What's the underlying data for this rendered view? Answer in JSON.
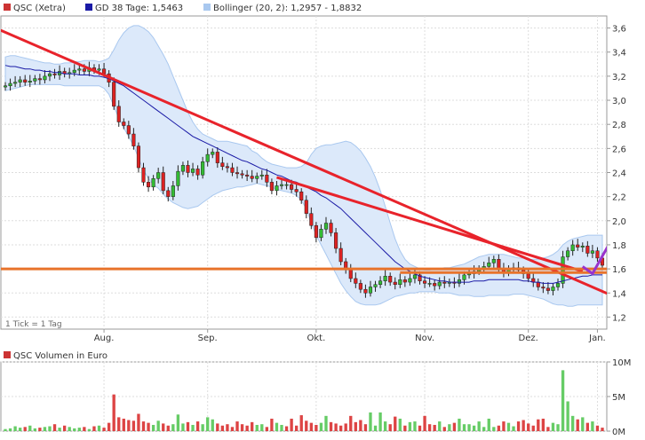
{
  "chart_data": [
    {
      "type": "candlestick",
      "legend": [
        {
          "label": "QSC (Xetra)",
          "color": "#cc3333"
        },
        {
          "label": "GD 38 Tage: 1,5463",
          "color": "#1a1aa6"
        },
        {
          "label": "Bollinger (20, 2): 1,2957 - 1,8832",
          "color": "#a9c8ef"
        }
      ],
      "ylim": [
        1.1,
        3.7
      ],
      "yticks": [
        "1,2",
        "1,4",
        "1,6",
        "1,8",
        "2,0",
        "2,2",
        "2,4",
        "2,6",
        "2,8",
        "3,0",
        "3,2",
        "3,4",
        "3,6"
      ],
      "xticks": [
        "Aug.",
        "Sep.",
        "Okt.",
        "Nov.",
        "Dez.",
        "Jan."
      ],
      "footnote": "1 Tick = 1 Tag",
      "close": [
        3.12,
        3.14,
        3.15,
        3.17,
        3.15,
        3.16,
        3.18,
        3.17,
        3.2,
        3.22,
        3.21,
        3.24,
        3.22,
        3.23,
        3.25,
        3.26,
        3.24,
        3.27,
        3.25,
        3.26,
        3.22,
        3.15,
        2.95,
        2.82,
        2.79,
        2.72,
        2.62,
        2.44,
        2.32,
        2.28,
        2.35,
        2.4,
        2.25,
        2.2,
        2.29,
        2.41,
        2.46,
        2.4,
        2.43,
        2.38,
        2.49,
        2.55,
        2.57,
        2.48,
        2.45,
        2.44,
        2.4,
        2.39,
        2.38,
        2.37,
        2.35,
        2.37,
        2.38,
        2.32,
        2.25,
        2.29,
        2.3,
        2.3,
        2.26,
        2.24,
        2.17,
        2.06,
        1.96,
        1.86,
        1.93,
        1.98,
        1.9,
        1.77,
        1.66,
        1.6,
        1.52,
        1.48,
        1.43,
        1.4,
        1.45,
        1.47,
        1.5,
        1.54,
        1.49,
        1.47,
        1.51,
        1.49,
        1.52,
        1.55,
        1.5,
        1.48,
        1.48,
        1.46,
        1.49,
        1.48,
        1.49,
        1.48,
        1.51,
        1.55,
        1.56,
        1.58,
        1.6,
        1.62,
        1.65,
        1.68,
        1.6,
        1.57,
        1.6,
        1.61,
        1.59,
        1.56,
        1.52,
        1.49,
        1.45,
        1.44,
        1.42,
        1.45,
        1.48,
        1.7,
        1.75,
        1.8,
        1.78,
        1.79,
        1.73,
        1.75,
        1.69,
        1.63
      ],
      "gd38": [
        3.29,
        3.28,
        3.28,
        3.27,
        3.26,
        3.26,
        3.25,
        3.25,
        3.24,
        3.24,
        3.23,
        3.23,
        3.22,
        3.22,
        3.22,
        3.21,
        3.21,
        3.21,
        3.2,
        3.2,
        3.19,
        3.18,
        3.16,
        3.14,
        3.12,
        3.09,
        3.06,
        3.03,
        3.0,
        2.97,
        2.94,
        2.91,
        2.88,
        2.85,
        2.82,
        2.79,
        2.76,
        2.73,
        2.7,
        2.68,
        2.66,
        2.64,
        2.62,
        2.6,
        2.58,
        2.56,
        2.54,
        2.52,
        2.5,
        2.49,
        2.47,
        2.45,
        2.43,
        2.42,
        2.4,
        2.38,
        2.37,
        2.35,
        2.33,
        2.32,
        2.3,
        2.28,
        2.26,
        2.24,
        2.21,
        2.19,
        2.16,
        2.13,
        2.1,
        2.06,
        2.02,
        1.98,
        1.94,
        1.9,
        1.86,
        1.82,
        1.78,
        1.74,
        1.7,
        1.66,
        1.63,
        1.6,
        1.58,
        1.56,
        1.54,
        1.53,
        1.52,
        1.51,
        1.5,
        1.5,
        1.49,
        1.49,
        1.49,
        1.49,
        1.49,
        1.5,
        1.5,
        1.5,
        1.51,
        1.51,
        1.51,
        1.51,
        1.51,
        1.51,
        1.51,
        1.5,
        1.5,
        1.49,
        1.49,
        1.48,
        1.48,
        1.48,
        1.49,
        1.5,
        1.51,
        1.52,
        1.53,
        1.54,
        1.54,
        1.55,
        1.55,
        1.55
      ],
      "boll_upper": [
        3.36,
        3.37,
        3.37,
        3.36,
        3.35,
        3.34,
        3.33,
        3.32,
        3.31,
        3.31,
        3.3,
        3.3,
        3.31,
        3.31,
        3.32,
        3.32,
        3.33,
        3.33,
        3.33,
        3.32,
        3.33,
        3.35,
        3.42,
        3.5,
        3.56,
        3.6,
        3.62,
        3.62,
        3.6,
        3.57,
        3.52,
        3.45,
        3.38,
        3.3,
        3.2,
        3.1,
        3.0,
        2.9,
        2.82,
        2.76,
        2.72,
        2.7,
        2.68,
        2.66,
        2.66,
        2.66,
        2.65,
        2.64,
        2.63,
        2.62,
        2.58,
        2.56,
        2.52,
        2.49,
        2.47,
        2.46,
        2.45,
        2.44,
        2.44,
        2.44,
        2.45,
        2.48,
        2.55,
        2.6,
        2.62,
        2.63,
        2.63,
        2.64,
        2.65,
        2.66,
        2.65,
        2.62,
        2.58,
        2.52,
        2.45,
        2.36,
        2.25,
        2.12,
        1.98,
        1.85,
        1.75,
        1.68,
        1.64,
        1.62,
        1.6,
        1.59,
        1.59,
        1.6,
        1.6,
        1.61,
        1.61,
        1.62,
        1.63,
        1.64,
        1.66,
        1.68,
        1.7,
        1.71,
        1.72,
        1.72,
        1.72,
        1.72,
        1.71,
        1.7,
        1.69,
        1.69,
        1.68,
        1.68,
        1.68,
        1.69,
        1.7,
        1.72,
        1.75,
        1.8,
        1.83,
        1.85,
        1.86,
        1.87,
        1.88,
        1.88,
        1.88,
        1.88
      ],
      "boll_lower": [
        3.08,
        3.09,
        3.1,
        3.11,
        3.12,
        3.13,
        3.13,
        3.13,
        3.13,
        3.13,
        3.13,
        3.13,
        3.12,
        3.12,
        3.12,
        3.12,
        3.12,
        3.12,
        3.12,
        3.12,
        3.1,
        3.05,
        2.95,
        2.85,
        2.77,
        2.7,
        2.62,
        2.52,
        2.42,
        2.35,
        2.3,
        2.27,
        2.22,
        2.18,
        2.15,
        2.13,
        2.11,
        2.1,
        2.11,
        2.12,
        2.15,
        2.18,
        2.21,
        2.23,
        2.25,
        2.26,
        2.27,
        2.28,
        2.28,
        2.29,
        2.3,
        2.31,
        2.3,
        2.29,
        2.28,
        2.26,
        2.25,
        2.24,
        2.23,
        2.21,
        2.17,
        2.1,
        1.98,
        1.88,
        1.8,
        1.72,
        1.64,
        1.56,
        1.48,
        1.42,
        1.37,
        1.33,
        1.31,
        1.3,
        1.3,
        1.3,
        1.31,
        1.33,
        1.35,
        1.37,
        1.38,
        1.39,
        1.4,
        1.4,
        1.41,
        1.41,
        1.41,
        1.41,
        1.4,
        1.4,
        1.4,
        1.39,
        1.38,
        1.38,
        1.38,
        1.37,
        1.37,
        1.37,
        1.38,
        1.38,
        1.38,
        1.38,
        1.38,
        1.39,
        1.39,
        1.39,
        1.38,
        1.37,
        1.36,
        1.35,
        1.33,
        1.31,
        1.3,
        1.3,
        1.29,
        1.29,
        1.3,
        1.3,
        1.3,
        1.3,
        1.3,
        1.3
      ],
      "trendlines": [
        {
          "color": "#e8232b",
          "from": {
            "day": -2,
            "value": 3.6
          },
          "to": {
            "day": 124,
            "value": 1.36
          }
        },
        {
          "color": "#e8232b",
          "from": {
            "day": 55,
            "value": 2.36
          },
          "to": {
            "day": 117,
            "value": 1.58
          }
        },
        {
          "color": "#e8732b",
          "from": {
            "day": -2,
            "value": 1.6
          },
          "to": {
            "day": 124,
            "value": 1.6
          }
        },
        {
          "color": "#e8732b",
          "from": {
            "day": 80,
            "value": 1.57
          },
          "to": {
            "day": 124,
            "value": 1.57
          }
        }
      ],
      "projection": {
        "color": "#9933cc",
        "points": [
          [
            117,
            1.62
          ],
          [
            119,
            1.56
          ],
          [
            122,
            1.78
          ],
          [
            124,
            1.68
          ]
        ]
      }
    },
    {
      "type": "bar",
      "legend": [
        {
          "label": "QSC Volumen in Euro",
          "color": "#cc3333"
        }
      ],
      "yticks": [
        "10M",
        "5M",
        "0M"
      ],
      "ylim": [
        0,
        10
      ],
      "values": [
        0.3,
        0.4,
        0.7,
        0.5,
        0.6,
        0.8,
        0.4,
        0.5,
        0.6,
        0.7,
        1.0,
        0.5,
        0.8,
        0.6,
        0.4,
        0.5,
        0.6,
        0.3,
        0.7,
        0.8,
        0.5,
        1.2,
        5.3,
        2.0,
        1.8,
        1.6,
        1.5,
        2.5,
        1.4,
        1.2,
        0.9,
        1.5,
        1.1,
        0.8,
        1.0,
        2.4,
        1.1,
        1.3,
        0.9,
        1.4,
        1.0,
        2.0,
        1.7,
        1.1,
        0.8,
        1.0,
        0.6,
        1.4,
        1.0,
        0.8,
        1.3,
        0.9,
        1.0,
        0.6,
        1.8,
        1.2,
        0.9,
        0.7,
        1.8,
        0.8,
        2.3,
        1.5,
        1.2,
        0.9,
        1.2,
        2.2,
        1.3,
        1.1,
        0.8,
        1.1,
        2.2,
        1.3,
        1.6,
        1.0,
        2.7,
        0.8,
        2.7,
        1.4,
        1.0,
        2.1,
        1.8,
        0.8,
        1.3,
        1.4,
        0.8,
        2.2,
        1.0,
        0.9,
        1.4,
        0.6,
        1.0,
        1.2,
        1.8,
        1.0,
        1.0,
        0.8,
        1.4,
        0.6,
        1.8,
        0.6,
        0.8,
        1.4,
        1.2,
        0.7,
        1.4,
        1.6,
        1.1,
        0.8,
        1.7,
        1.8,
        0.6,
        1.2,
        1.0,
        8.8,
        4.3,
        2.2,
        1.7,
        2.0,
        1.2,
        1.4,
        0.8,
        0.5
      ],
      "up": [
        1,
        1,
        1,
        1,
        0,
        1,
        1,
        0,
        1,
        1,
        0,
        1,
        0,
        1,
        1,
        1,
        0,
        1,
        0,
        1,
        0,
        0,
        0,
        0,
        0,
        0,
        0,
        0,
        0,
        0,
        1,
        1,
        0,
        0,
        1,
        1,
        1,
        0,
        1,
        0,
        1,
        1,
        1,
        0,
        0,
        0,
        0,
        0,
        0,
        0,
        0,
        1,
        1,
        0,
        0,
        1,
        1,
        0,
        0,
        0,
        0,
        0,
        0,
        0,
        1,
        1,
        0,
        0,
        0,
        0,
        0,
        0,
        0,
        0,
        1,
        1,
        1,
        1,
        0,
        0,
        1,
        0,
        1,
        1,
        0,
        0,
        0,
        0,
        1,
        0,
        1,
        0,
        1,
        1,
        1,
        1,
        1,
        1,
        1,
        1,
        0,
        0,
        1,
        1,
        0,
        0,
        0,
        0,
        0,
        0,
        0,
        1,
        1,
        1,
        1,
        1,
        0,
        1,
        0,
        1,
        0,
        0
      ]
    }
  ]
}
